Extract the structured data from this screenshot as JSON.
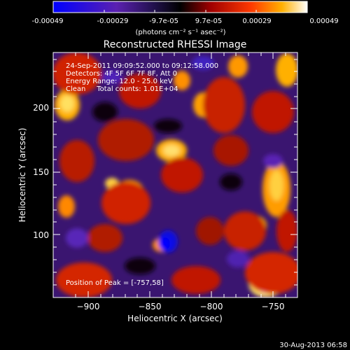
{
  "colorbar": {
    "tick_labels": [
      "-0.00049",
      "-0.00029",
      "-9.7e-05",
      "9.7e-05",
      "0.00029",
      "0.00049"
    ],
    "units": "(photons cm⁻² s⁻¹ asec⁻²)",
    "range": [
      -0.00049,
      0.00049
    ]
  },
  "plot": {
    "title": "Reconstructed RHESSI Image",
    "xlabel": "Heliocentric X (arcsec)",
    "ylabel": "Heliocentric Y (arcsec)",
    "x_ticks": [
      "−900",
      "−850",
      "−800",
      "−750"
    ],
    "y_ticks": [
      "100",
      "150",
      "200"
    ],
    "x_range": [
      -928,
      -733
    ],
    "y_range": [
      38,
      230
    ],
    "annotation_lines": [
      "24-Sep-2011 09:09:52.000 to 09:12:58.000",
      "Detectors: 4F 5F 6F 7F 8F, Att 0",
      "Energy Range: 12.0 - 25.0 keV",
      "Clean     Total counts: 1.01E+04"
    ],
    "peak_label": "Position of Peak = [-757,58]",
    "peak": [
      -757,
      58
    ]
  },
  "footer": {
    "date": "30-Aug-2013 06:58"
  },
  "colors": {
    "background": "#000000",
    "foreground": "#ffffff",
    "low": "#0000ff",
    "mid": "#000000",
    "high": "#ffffff"
  }
}
